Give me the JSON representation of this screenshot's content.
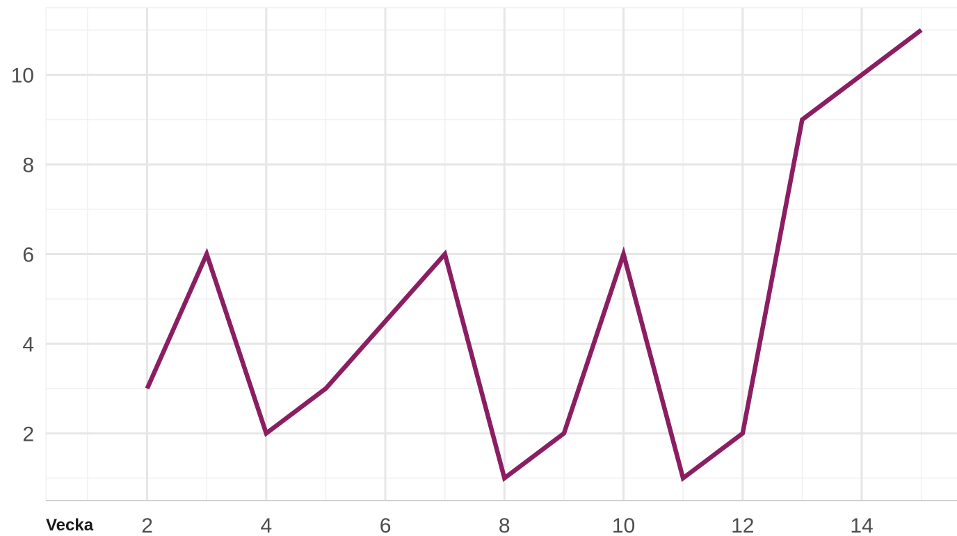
{
  "chart_data": {
    "type": "line",
    "title": "",
    "xlabel": "Vecka",
    "ylabel": "",
    "xlim": [
      0.3,
      15.6
    ],
    "ylim": [
      0.5,
      11.5
    ],
    "x_ticks": [
      2,
      4,
      6,
      8,
      10,
      12,
      14
    ],
    "x_tick_labels": [
      "2",
      "4",
      "6",
      "8",
      "10",
      "12",
      "14"
    ],
    "y_ticks": [
      2,
      4,
      6,
      8,
      10
    ],
    "y_tick_labels": [
      "2",
      "4",
      "6",
      "8",
      "10"
    ],
    "grid": true,
    "legend": "none",
    "line_color": "#8b1e62",
    "series": [
      {
        "x": [
          2,
          3,
          4,
          5,
          6,
          7,
          8,
          9,
          10,
          11,
          12,
          13,
          14,
          15
        ],
        "values": [
          3,
          6,
          2,
          3,
          4.5,
          6,
          1,
          2,
          6,
          1,
          2,
          9,
          10,
          11
        ]
      }
    ]
  }
}
